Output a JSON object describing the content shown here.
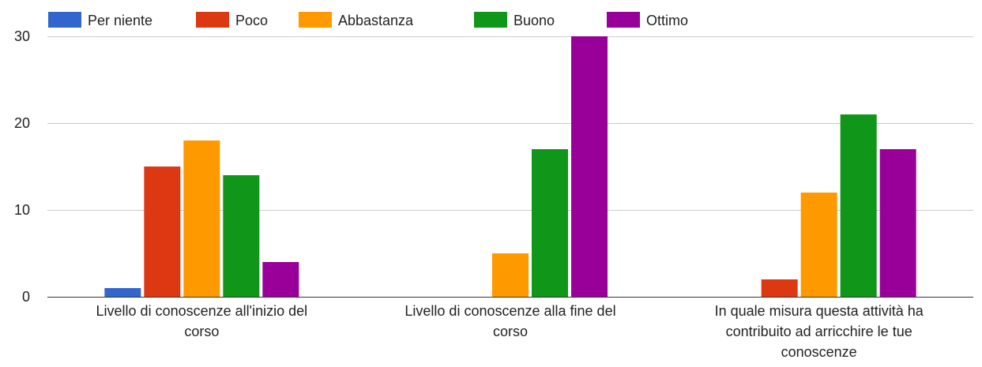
{
  "chart_data": {
    "type": "bar",
    "categories": [
      [
        "Livello di conoscenze all'inizio del",
        "corso"
      ],
      [
        "Livello di conoscenze alla fine del",
        "corso"
      ],
      [
        "In quale misura questa attività ha",
        "contribuito ad arricchire le tue",
        "conoscenze"
      ]
    ],
    "series": [
      {
        "name": "Per niente",
        "color": "#3366cc",
        "values": [
          1,
          0,
          0
        ]
      },
      {
        "name": "Poco",
        "color": "#dc3912",
        "values": [
          15,
          0,
          2
        ]
      },
      {
        "name": "Abbastanza",
        "color": "#ff9900",
        "values": [
          18,
          5,
          12
        ]
      },
      {
        "name": "Buono",
        "color": "#109618",
        "values": [
          14,
          17,
          21
        ]
      },
      {
        "name": "Ottimo",
        "color": "#990099",
        "values": [
          4,
          30,
          17
        ]
      }
    ],
    "yticks": [
      0,
      10,
      20,
      30
    ],
    "ylim": [
      0,
      30
    ],
    "grid": true,
    "legend_position": "top"
  }
}
